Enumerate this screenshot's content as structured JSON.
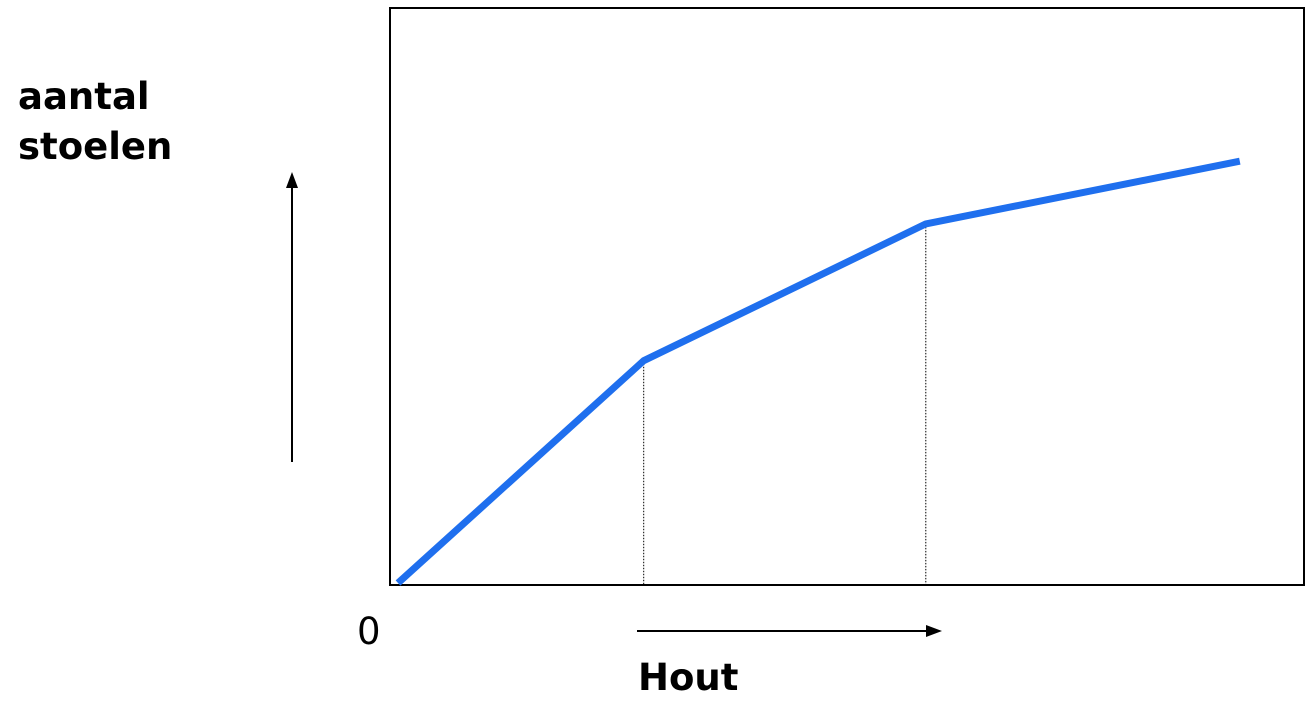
{
  "chart_data": {
    "type": "line",
    "title": "",
    "ylabel_lines": [
      "aantal",
      "stoelen"
    ],
    "xlabel": "Hout",
    "origin_label": "0",
    "grid": false,
    "xlim": [
      0,
      10
    ],
    "ylim": [
      0,
      10
    ],
    "series": [
      {
        "x": [
          0,
          2.7,
          5.8,
          9.25
        ],
        "y": [
          0,
          3.9,
          6.3,
          7.4
        ],
        "color": "#1f6fee"
      }
    ],
    "guide_lines_at_x": [
      2.7,
      5.8
    ],
    "axis_arrows": {
      "y": "up",
      "x": "right"
    }
  }
}
